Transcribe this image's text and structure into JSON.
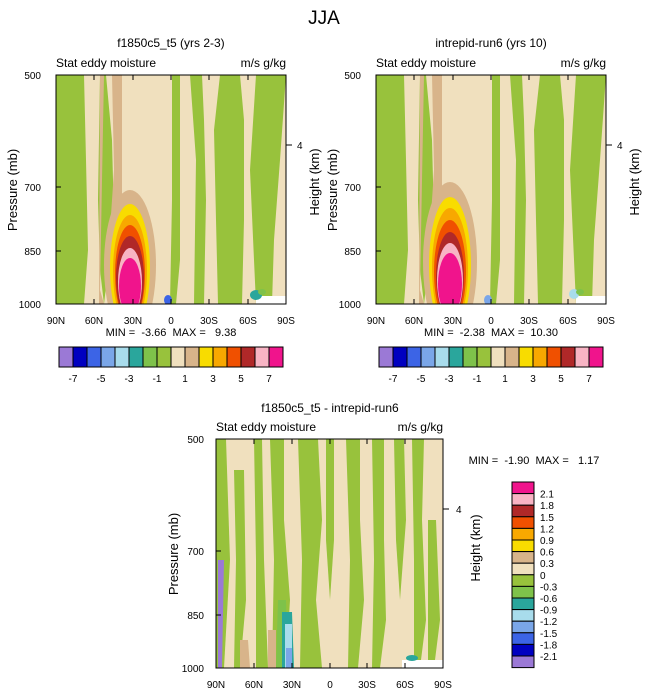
{
  "suptitle": "JJA",
  "chart_data": [
    {
      "type": "contour",
      "id": "top-left",
      "title": "f1850c5_t5 (yrs 2-3)",
      "left_label": "Stat eddy moisture",
      "right_label": "m/s g/kg",
      "ylabel": "Pressure (mb)",
      "ylabel_right": "Height (km)",
      "x_ticks": [
        "90N",
        "60N",
        "30N",
        "0",
        "30S",
        "60S",
        "90S"
      ],
      "y_ticks": [
        "500",
        "700",
        "850",
        "1000"
      ],
      "y_ticks_right": [
        "4"
      ],
      "stats": "MIN =  -3.66  MAX =   9.38",
      "min": -3.66,
      "max": 9.38
    },
    {
      "type": "contour",
      "id": "top-right",
      "title": "intrepid-run6 (yrs 10)",
      "left_label": "Stat eddy moisture",
      "right_label": "m/s g/kg",
      "ylabel": "Pressure (mb)",
      "ylabel_right": "Height (km)",
      "x_ticks": [
        "90N",
        "60N",
        "30N",
        "0",
        "30S",
        "60S",
        "90S"
      ],
      "y_ticks": [
        "500",
        "700",
        "850",
        "1000"
      ],
      "y_ticks_right": [
        "4"
      ],
      "stats": "MIN =  -2.38  MAX =  10.30",
      "min": -2.38,
      "max": 10.3
    },
    {
      "type": "contour",
      "id": "bottom",
      "title": "f1850c5_t5 - intrepid-run6",
      "left_label": "Stat eddy moisture",
      "right_label": "m/s g/kg",
      "ylabel": "Pressure (mb)",
      "ylabel_right": "Height (km)",
      "x_ticks": [
        "90N",
        "60N",
        "30N",
        "0",
        "30S",
        "60S",
        "90S"
      ],
      "y_ticks": [
        "500",
        "700",
        "850",
        "1000"
      ],
      "y_ticks_right": [
        "4"
      ],
      "stats": "MIN =  -1.90  MAX =   1.17",
      "min": -1.9,
      "max": 1.17
    }
  ],
  "colorbar_top": {
    "colors": [
      "#9b79d6",
      "#0000c0",
      "#3c64e6",
      "#7aa6e8",
      "#a8dcec",
      "#2aa69c",
      "#7ec24a",
      "#98c23c",
      "#f0e0be",
      "#d8b48a",
      "#f8dc00",
      "#f8a800",
      "#f05000",
      "#b02828",
      "#f8b4c4",
      "#f0148c"
    ],
    "labels": [
      "-7",
      "-5",
      "-3",
      "-1",
      "1",
      "3",
      "5",
      "7"
    ]
  },
  "colorbar_bottom": {
    "colors": [
      "#f0148c",
      "#f8b4c4",
      "#b02828",
      "#f05000",
      "#f8a800",
      "#f8dc00",
      "#d8b48a",
      "#f0e0be",
      "#98c23c",
      "#7ec24a",
      "#2aa69c",
      "#a8dcec",
      "#7aa6e8",
      "#3c64e6",
      "#0000c0",
      "#9b79d6"
    ],
    "labels": [
      "2.1",
      "1.8",
      "1.5",
      "1.2",
      "0.9",
      "0.6",
      "0.3",
      "0",
      "-0.3",
      "-0.6",
      "-0.9",
      "-1.2",
      "-1.5",
      "-1.8",
      "-2.1"
    ]
  }
}
